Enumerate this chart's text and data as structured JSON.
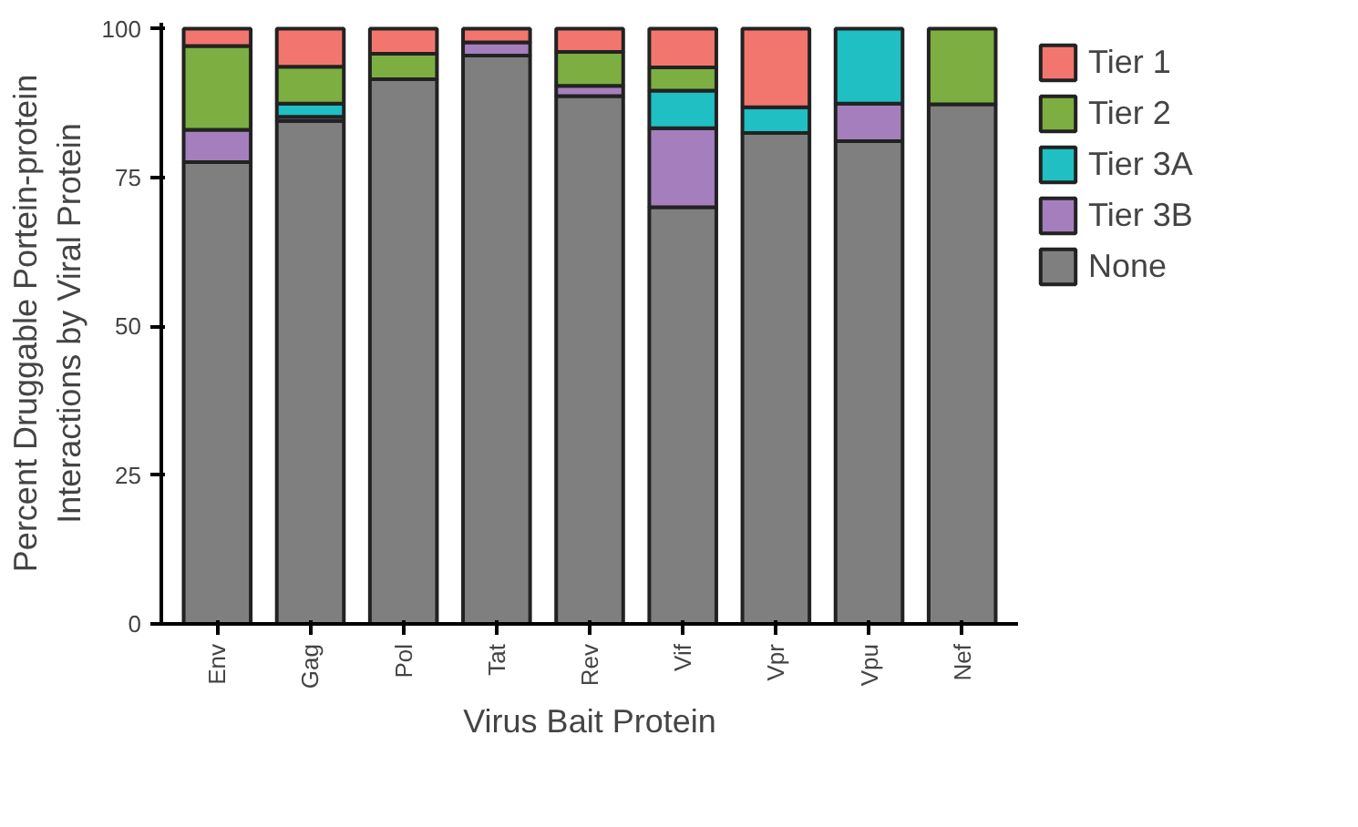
{
  "chart_data": {
    "type": "bar",
    "stacked": true,
    "xlabel": "Virus Bait Protein",
    "ylabel": "Percent Druggable Portein-protein\nInteractions by Viral Protein",
    "categories": [
      "Env",
      "Gag",
      "Pol",
      "Tat",
      "Rev",
      "Vif",
      "Vpr",
      "Vpu",
      "Nef"
    ],
    "series": [
      {
        "name": "None",
        "color": "#7f7f7f",
        "values": [
          77.6,
          84.5,
          91.5,
          95.5,
          88.7,
          70,
          82.5,
          81.1,
          87.3
        ]
      },
      {
        "name": "Tier 3B",
        "color": "#a57fbd",
        "values": [
          5.4,
          0.7,
          0,
          2.2,
          1.7,
          13.3,
          0,
          6.3,
          0
        ]
      },
      {
        "name": "Tier 3A",
        "color": "#1fbfc3",
        "values": [
          0,
          2.2,
          0,
          0,
          0,
          6.3,
          4.3,
          12.6,
          0
        ]
      },
      {
        "name": "Tier 2",
        "color": "#7cae42",
        "values": [
          14.1,
          6.2,
          4.3,
          0,
          5.7,
          3.9,
          0,
          0,
          12.7
        ]
      },
      {
        "name": "Tier 1",
        "color": "#f3766e",
        "values": [
          2.9,
          6.4,
          4.2,
          2.3,
          3.9,
          6.5,
          13.2,
          0,
          0
        ]
      }
    ],
    "ylim": [
      0,
      101
    ],
    "yticks": [
      0,
      25,
      50,
      75,
      100
    ],
    "grid": false,
    "legend": "right"
  }
}
